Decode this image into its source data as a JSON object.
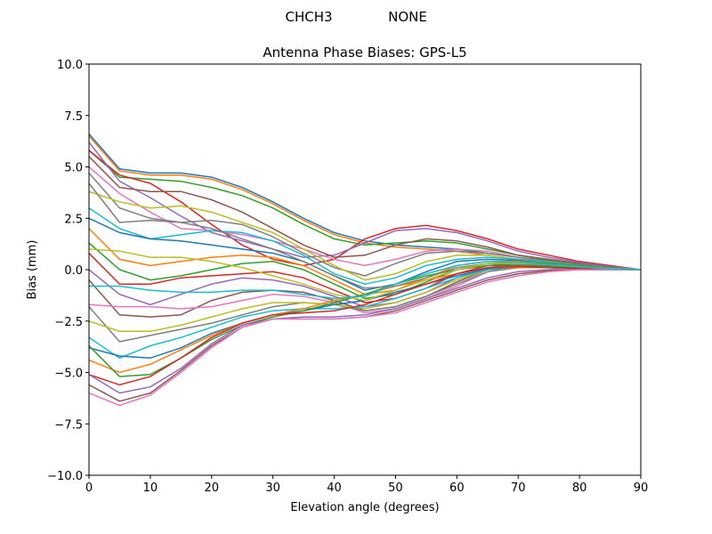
{
  "chart_data": {
    "type": "line",
    "suptitle_left": "CHCH3",
    "suptitle_right": "NONE",
    "title": "Antenna Phase Biases: GPS-L5",
    "xlabel": "Elevation angle (degrees)",
    "ylabel": "Bias (mm)",
    "xlim": [
      0,
      90
    ],
    "ylim": [
      -10,
      10
    ],
    "xticks": [
      "0",
      "10",
      "20",
      "30",
      "40",
      "50",
      "60",
      "70",
      "80",
      "90"
    ],
    "yticks": [
      "10.0",
      "7.5",
      "5.0",
      "2.5",
      "0.0",
      "−2.5",
      "−5.0",
      "−7.5",
      "−10.0"
    ],
    "grid": false,
    "x": [
      0,
      5,
      10,
      15,
      20,
      25,
      30,
      35,
      40,
      45,
      50,
      55,
      60,
      65,
      70,
      75,
      80,
      85,
      90
    ],
    "colors": [
      "#1f77b4",
      "#ff7f0e",
      "#2ca02c",
      "#d62728",
      "#9467bd",
      "#8c564b",
      "#e377c2",
      "#7f7f7f",
      "#bcbd22",
      "#17becf"
    ],
    "series": [
      [
        6.6,
        4.9,
        4.7,
        4.7,
        4.5,
        4.0,
        3.3,
        2.5,
        1.8,
        1.4,
        1.2,
        1.1,
        1.0,
        0.8,
        0.6,
        0.4,
        0.2,
        0.1,
        0
      ],
      [
        6.5,
        4.8,
        4.6,
        4.6,
        4.4,
        3.9,
        3.2,
        2.4,
        1.7,
        1.3,
        1.1,
        1.0,
        0.9,
        0.7,
        0.5,
        0.35,
        0.2,
        0.1,
        0
      ],
      [
        5.8,
        4.5,
        4.4,
        4.3,
        4.0,
        3.6,
        3.0,
        2.2,
        1.5,
        1.2,
        1.3,
        1.4,
        1.3,
        1.0,
        0.7,
        0.45,
        0.25,
        0.1,
        0
      ],
      [
        5.8,
        4.6,
        4.2,
        3.3,
        2.2,
        1.2,
        0.5,
        0.2,
        0.5,
        1.5,
        2.0,
        2.15,
        1.9,
        1.5,
        1.0,
        0.7,
        0.4,
        0.2,
        0
      ],
      [
        6.2,
        4.3,
        3.5,
        2.6,
        1.8,
        1.4,
        1.0,
        0.6,
        0.7,
        1.3,
        1.9,
        2.0,
        1.8,
        1.4,
        0.9,
        0.6,
        0.35,
        0.15,
        0
      ],
      [
        5.5,
        4.0,
        3.8,
        3.8,
        3.4,
        2.8,
        2.0,
        1.2,
        0.6,
        0.7,
        1.2,
        1.5,
        1.4,
        1.1,
        0.7,
        0.5,
        0.3,
        0.1,
        0
      ],
      [
        5.0,
        3.7,
        2.8,
        2.0,
        1.9,
        1.7,
        1.4,
        1.0,
        0.5,
        0.2,
        0.5,
        0.9,
        1.0,
        0.9,
        0.6,
        0.4,
        0.25,
        0.1,
        0
      ],
      [
        4.7,
        3.0,
        2.5,
        2.3,
        2.4,
        2.2,
        1.6,
        0.8,
        0.1,
        -0.3,
        0.3,
        0.8,
        0.9,
        0.8,
        0.6,
        0.4,
        0.25,
        0.1,
        0
      ],
      [
        3.8,
        3.3,
        3.0,
        3.1,
        2.8,
        2.3,
        1.8,
        1.0,
        0.2,
        -0.5,
        -0.2,
        0.4,
        0.7,
        0.7,
        0.5,
        0.35,
        0.2,
        0.1,
        0
      ],
      [
        3.0,
        2.0,
        1.5,
        1.7,
        1.9,
        1.8,
        1.4,
        0.7,
        -0.2,
        -0.7,
        -0.4,
        0.2,
        0.5,
        0.6,
        0.5,
        0.35,
        0.2,
        0.1,
        0
      ],
      [
        2.5,
        1.8,
        1.5,
        1.4,
        1.2,
        1.0,
        0.8,
        0.4,
        -0.3,
        -1.0,
        -0.7,
        -0.1,
        0.4,
        0.5,
        0.45,
        0.3,
        0.2,
        0.1,
        0
      ],
      [
        2.0,
        0.5,
        0.2,
        0.4,
        0.6,
        0.7,
        0.6,
        0.2,
        -0.5,
        -1.2,
        -1.0,
        -0.4,
        0.2,
        0.4,
        0.4,
        0.3,
        0.2,
        0.1,
        0
      ],
      [
        1.3,
        0.0,
        -0.5,
        -0.3,
        0.0,
        0.3,
        0.4,
        0.0,
        -0.7,
        -1.4,
        -1.2,
        -0.6,
        0.0,
        0.3,
        0.35,
        0.3,
        0.2,
        0.1,
        0
      ],
      [
        0.8,
        -0.7,
        -0.7,
        -0.4,
        -0.3,
        -0.2,
        -0.1,
        -0.4,
        -1.0,
        -1.6,
        -1.4,
        -0.9,
        -0.2,
        0.2,
        0.3,
        0.25,
        0.15,
        0.05,
        0
      ],
      [
        0.0,
        -1.2,
        -1.7,
        -1.2,
        -0.7,
        -0.4,
        -0.5,
        -0.8,
        -1.3,
        -1.8,
        -1.6,
        -1.1,
        -0.4,
        0.1,
        0.25,
        0.2,
        0.15,
        0.05,
        0
      ],
      [
        -0.5,
        -2.2,
        -2.3,
        -2.2,
        -1.5,
        -1.1,
        -1.0,
        -1.1,
        -1.5,
        -2.0,
        -1.8,
        -1.3,
        -0.6,
        0.0,
        0.2,
        0.2,
        0.1,
        0.05,
        0
      ],
      [
        -1.7,
        -1.8,
        -1.8,
        -1.9,
        -1.8,
        -1.5,
        -1.2,
        -1.3,
        -1.6,
        -2.1,
        -1.9,
        -1.4,
        -0.8,
        -0.1,
        0.15,
        0.15,
        0.1,
        0.05,
        0
      ],
      [
        -1.8,
        -3.5,
        -3.2,
        -2.9,
        -2.6,
        -2.2,
        -1.8,
        -1.6,
        -1.7,
        -2.0,
        -1.8,
        -1.3,
        -0.7,
        -0.1,
        0.1,
        0.1,
        0.1,
        0.05,
        0
      ],
      [
        -2.5,
        -3.0,
        -3.0,
        -2.7,
        -2.3,
        -1.9,
        -1.6,
        -1.6,
        -1.7,
        -1.9,
        -1.6,
        -1.1,
        -0.5,
        0.0,
        0.1,
        0.1,
        0.1,
        0.05,
        0
      ],
      [
        -3.3,
        -4.3,
        -3.7,
        -3.3,
        -2.8,
        -2.3,
        -2.0,
        -1.9,
        -1.9,
        -1.8,
        -1.4,
        -0.9,
        -0.4,
        0.0,
        0.1,
        0.1,
        0.05,
        0.02,
        0
      ],
      [
        -3.8,
        -4.2,
        -4.3,
        -3.8,
        -3.1,
        -2.6,
        -2.2,
        -2.0,
        -1.7,
        -1.5,
        -1.1,
        -0.7,
        -0.3,
        0.05,
        0.1,
        0.1,
        0.05,
        0.02,
        0
      ],
      [
        -4.4,
        -5.0,
        -4.6,
        -3.9,
        -3.2,
        -2.6,
        -2.2,
        -1.9,
        -1.5,
        -1.2,
        -0.8,
        -0.5,
        -0.2,
        0.1,
        0.1,
        0.1,
        0.05,
        0.02,
        0
      ],
      [
        -3.7,
        -5.2,
        -5.1,
        -4.3,
        -3.4,
        -2.7,
        -2.3,
        -2.0,
        -1.6,
        -1.2,
        -0.7,
        -0.3,
        0.0,
        0.2,
        0.2,
        0.15,
        0.1,
        0.05,
        0
      ],
      [
        -5.1,
        -5.6,
        -5.2,
        -4.3,
        -3.3,
        -2.6,
        -2.2,
        -2.1,
        -2.0,
        -1.7,
        -1.2,
        -0.7,
        -0.2,
        0.1,
        0.15,
        0.1,
        0.05,
        0.02,
        0
      ],
      [
        -5.1,
        -6.0,
        -5.7,
        -4.8,
        -3.6,
        -2.7,
        -2.4,
        -2.3,
        -2.3,
        -2.2,
        -1.9,
        -1.4,
        -0.9,
        -0.4,
        -0.1,
        0.0,
        0.0,
        0.0,
        0
      ],
      [
        -5.6,
        -6.4,
        -6.0,
        -4.9,
        -3.7,
        -2.8,
        -2.4,
        -2.4,
        -2.4,
        -2.3,
        -2.0,
        -1.5,
        -1.0,
        -0.5,
        -0.2,
        -0.05,
        0.0,
        0.0,
        0
      ],
      [
        -6.0,
        -6.6,
        -6.1,
        -5.0,
        -3.8,
        -2.8,
        -2.4,
        -2.4,
        -2.4,
        -2.3,
        -2.1,
        -1.6,
        -1.1,
        -0.6,
        -0.3,
        -0.1,
        0.0,
        0.0,
        0
      ],
      [
        4.2,
        2.3,
        2.4,
        2.3,
        2.0,
        1.5,
        1.0,
        0.4,
        -0.3,
        -0.9,
        -0.8,
        -0.4,
        0.1,
        0.3,
        0.3,
        0.25,
        0.15,
        0.05,
        0
      ],
      [
        1.0,
        0.9,
        0.6,
        0.6,
        0.4,
        0.1,
        -0.3,
        -0.7,
        -1.2,
        -1.5,
        -1.0,
        -0.5,
        0.0,
        0.3,
        0.3,
        0.25,
        0.15,
        0.05,
        0
      ],
      [
        -0.8,
        -0.8,
        -1.0,
        -1.1,
        -1.1,
        -1.0,
        -1.0,
        -1.2,
        -1.4,
        -1.3,
        -0.7,
        -0.2,
        0.2,
        0.4,
        0.35,
        0.25,
        0.15,
        0.05,
        0
      ]
    ]
  }
}
